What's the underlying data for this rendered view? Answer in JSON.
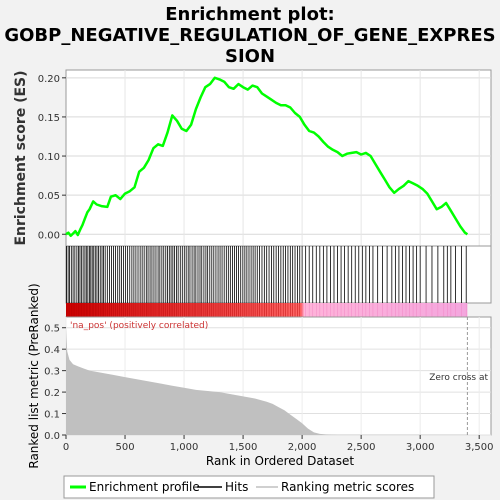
{
  "title_line1": "Enrichment plot:",
  "title_line2": "GOBP_NEGATIVE_REGULATION_OF_GENE_EXPRES",
  "title_line3": "SION",
  "chart_data": [
    {
      "type": "line",
      "name": "enrichment-score-panel",
      "ylabel": "Enrichment score (ES)",
      "xlim": [
        0,
        3600
      ],
      "ylim": [
        -0.015,
        0.21
      ],
      "yticks": [
        0.0,
        0.05,
        0.1,
        0.15,
        0.2
      ],
      "ytick_labels": [
        "0.00",
        "0.05",
        "0.10",
        "0.15",
        "0.20"
      ],
      "grid": true,
      "color": "#00ff00",
      "series": [
        {
          "name": "Enrichment profile",
          "x": [
            0,
            20,
            40,
            60,
            80,
            100,
            120,
            140,
            160,
            180,
            200,
            230,
            260,
            300,
            350,
            380,
            420,
            460,
            500,
            540,
            580,
            620,
            660,
            700,
            740,
            780,
            820,
            860,
            900,
            940,
            980,
            1020,
            1060,
            1100,
            1140,
            1180,
            1220,
            1260,
            1300,
            1340,
            1380,
            1420,
            1460,
            1500,
            1540,
            1580,
            1620,
            1660,
            1700,
            1740,
            1780,
            1820,
            1860,
            1900,
            1940,
            1980,
            2020,
            2060,
            2100,
            2140,
            2180,
            2220,
            2260,
            2300,
            2340,
            2380,
            2420,
            2460,
            2500,
            2540,
            2580,
            2620,
            2660,
            2700,
            2740,
            2780,
            2820,
            2860,
            2900,
            2940,
            2980,
            3020,
            3060,
            3100,
            3140,
            3180,
            3220,
            3260,
            3300,
            3340,
            3380,
            3400
          ],
          "y": [
            0.0,
            0.002,
            -0.002,
            0.001,
            0.004,
            -0.001,
            0.006,
            0.012,
            0.02,
            0.028,
            0.032,
            0.042,
            0.038,
            0.036,
            0.035,
            0.048,
            0.05,
            0.045,
            0.052,
            0.055,
            0.06,
            0.08,
            0.085,
            0.095,
            0.11,
            0.115,
            0.113,
            0.13,
            0.152,
            0.145,
            0.135,
            0.132,
            0.14,
            0.16,
            0.175,
            0.188,
            0.192,
            0.2,
            0.198,
            0.195,
            0.188,
            0.186,
            0.192,
            0.188,
            0.185,
            0.19,
            0.188,
            0.18,
            0.176,
            0.172,
            0.168,
            0.165,
            0.165,
            0.162,
            0.155,
            0.15,
            0.14,
            0.132,
            0.13,
            0.125,
            0.118,
            0.112,
            0.108,
            0.105,
            0.1,
            0.103,
            0.104,
            0.105,
            0.102,
            0.104,
            0.1,
            0.09,
            0.08,
            0.07,
            0.06,
            0.053,
            0.058,
            0.062,
            0.068,
            0.065,
            0.062,
            0.058,
            0.052,
            0.042,
            0.032,
            0.035,
            0.04,
            0.03,
            0.02,
            0.01,
            0.002,
            0.0
          ]
        }
      ]
    },
    {
      "type": "hits",
      "name": "hits-panel",
      "xlim": [
        0,
        3600
      ],
      "color": "#000000",
      "legend_label": "Hits",
      "hit_ranks": [
        5,
        18,
        30,
        45,
        60,
        75,
        92,
        105,
        118,
        130,
        145,
        160,
        172,
        185,
        198,
        210,
        222,
        235,
        248,
        262,
        275,
        290,
        305,
        318,
        332,
        350,
        368,
        385,
        402,
        420,
        438,
        455,
        470,
        488,
        505,
        522,
        540,
        558,
        575,
        592,
        610,
        628,
        645,
        662,
        680,
        695,
        712,
        728,
        745,
        762,
        780,
        795,
        812,
        828,
        845,
        860,
        875,
        890,
        905,
        920,
        935,
        950,
        968,
        985,
        1002,
        1018,
        1035,
        1050,
        1068,
        1085,
        1100,
        1118,
        1135,
        1150,
        1168,
        1185,
        1200,
        1218,
        1235,
        1252,
        1270,
        1288,
        1305,
        1322,
        1340,
        1358,
        1375,
        1392,
        1410,
        1428,
        1445,
        1462,
        1480,
        1498,
        1515,
        1532,
        1550,
        1568,
        1585,
        1602,
        1620,
        1640,
        1660,
        1680,
        1700,
        1720,
        1740,
        1760,
        1780,
        1800,
        1820,
        1840,
        1860,
        1880,
        1900,
        1920,
        1940,
        1960,
        1980,
        2000,
        2030,
        2060,
        2090,
        2120,
        2150,
        2180,
        2210,
        2240,
        2270,
        2300,
        2330,
        2360,
        2390,
        2420,
        2450,
        2480,
        2510,
        2540,
        2570,
        2600,
        2640,
        2680,
        2720,
        2760,
        2790,
        2820,
        2850,
        2880,
        2910,
        2940,
        2970,
        3000,
        3050,
        3100,
        3150,
        3200,
        3230,
        3260,
        3300,
        3350,
        3390
      ]
    },
    {
      "type": "heatmap",
      "name": "ranked-list-colorbar",
      "xlim": [
        0,
        3600
      ],
      "positive_end": 2000,
      "max_rank": 3400,
      "colors": {
        "high": "#cc0000",
        "mid": "#ff6666",
        "low": "#ffb3d9",
        "end": "#f4a6de"
      }
    },
    {
      "type": "area",
      "name": "ranked-list-metric",
      "ylabel": "Ranked list metric (PreRanked)",
      "xlabel": "Rank in Ordered Dataset",
      "xlim": [
        0,
        3600
      ],
      "ylim": [
        0,
        0.55
      ],
      "yticks": [
        0.0,
        0.1,
        0.2,
        0.3,
        0.4,
        0.5
      ],
      "ytick_labels": [
        "0.0",
        "0.1",
        "0.2",
        "0.3",
        "0.4",
        "0.5"
      ],
      "xticks": [
        0,
        500,
        1000,
        1500,
        2000,
        2500,
        3000,
        3500
      ],
      "xtick_labels": [
        "0",
        "500",
        "1,000",
        "1,500",
        "2,000",
        "2,500",
        "3,000",
        "3,500"
      ],
      "fill": "#c0c0c0",
      "x": [
        0,
        10,
        30,
        60,
        100,
        150,
        200,
        300,
        400,
        500,
        600,
        700,
        800,
        900,
        1000,
        1100,
        1200,
        1300,
        1400,
        1500,
        1600,
        1700,
        1750,
        1800,
        1850,
        1900,
        1950,
        2000,
        2050,
        2100,
        2150,
        2200,
        2300,
        2500,
        3000,
        3400
      ],
      "y": [
        0.5,
        0.39,
        0.35,
        0.33,
        0.32,
        0.31,
        0.3,
        0.29,
        0.28,
        0.27,
        0.26,
        0.25,
        0.24,
        0.23,
        0.22,
        0.21,
        0.205,
        0.2,
        0.19,
        0.18,
        0.17,
        0.155,
        0.145,
        0.13,
        0.115,
        0.095,
        0.075,
        0.055,
        0.03,
        0.012,
        0.005,
        0.003,
        0.002,
        0.002,
        0.002,
        0.002
      ],
      "zero_cross": 3400,
      "annotations": {
        "positive": "'na_pos' (positively correlated)",
        "zero_cross": "Zero cross at"
      }
    }
  ],
  "legend": {
    "items": [
      {
        "label": "Enrichment profile",
        "color": "#00ff00"
      },
      {
        "label": "Hits",
        "color": "#000000"
      },
      {
        "label": "Ranking metric scores",
        "color": "#c0c0c0"
      }
    ]
  }
}
